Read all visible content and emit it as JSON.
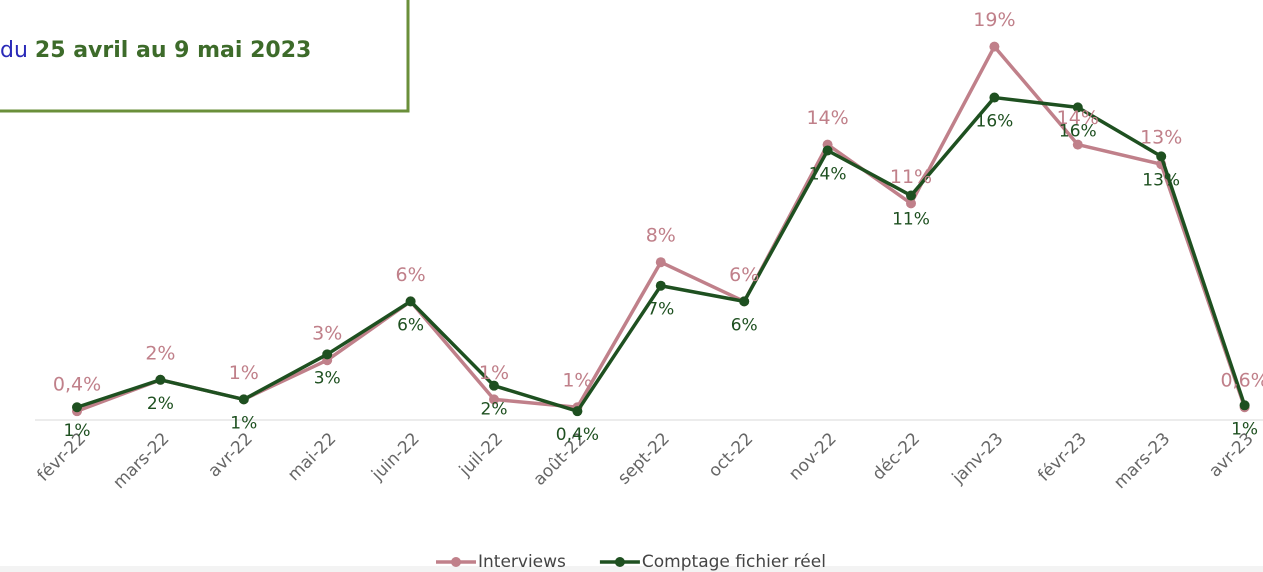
{
  "chart_data": {
    "type": "line",
    "annotation": {
      "prefix": "du",
      "text": "25 avril au 9 mai 2023"
    },
    "categories": [
      "févr-22",
      "mars-22",
      "avr-22",
      "mai-22",
      "juin-22",
      "juil-22",
      "août-22",
      "sept-22",
      "oct-22",
      "nov-22",
      "déc-22",
      "janv-23",
      "févr-23",
      "mars-23",
      "avr-23"
    ],
    "ylim": [
      0,
      20
    ],
    "legend": "bottom",
    "series": [
      {
        "name": "Interviews",
        "color": "#c0808a",
        "values": [
          0.4,
          2,
          1,
          3,
          6,
          1,
          0.6,
          8,
          6,
          14,
          11,
          19,
          14,
          13,
          0.6
        ],
        "value_labels": [
          "0,4%",
          "2%",
          "1%",
          "3%",
          "6%",
          "1%",
          "1%",
          "8%",
          "6%",
          "14%",
          "11%",
          "19%",
          "14%",
          "13%",
          "0,6%"
        ]
      },
      {
        "name": "Comptage fichier réel",
        "color": "#1e5020",
        "values": [
          0.6,
          2,
          1,
          3.3,
          6,
          1.7,
          0.4,
          6.8,
          6,
          13.7,
          11.4,
          16.4,
          15.9,
          13.4,
          0.7
        ],
        "value_labels": [
          "1%",
          "2%",
          "1%",
          "3%",
          "6%",
          "2%",
          "0,4%",
          "7%",
          "6%",
          "14%",
          "11%",
          "16%",
          "16%",
          "13%",
          "1%"
        ]
      }
    ]
  }
}
